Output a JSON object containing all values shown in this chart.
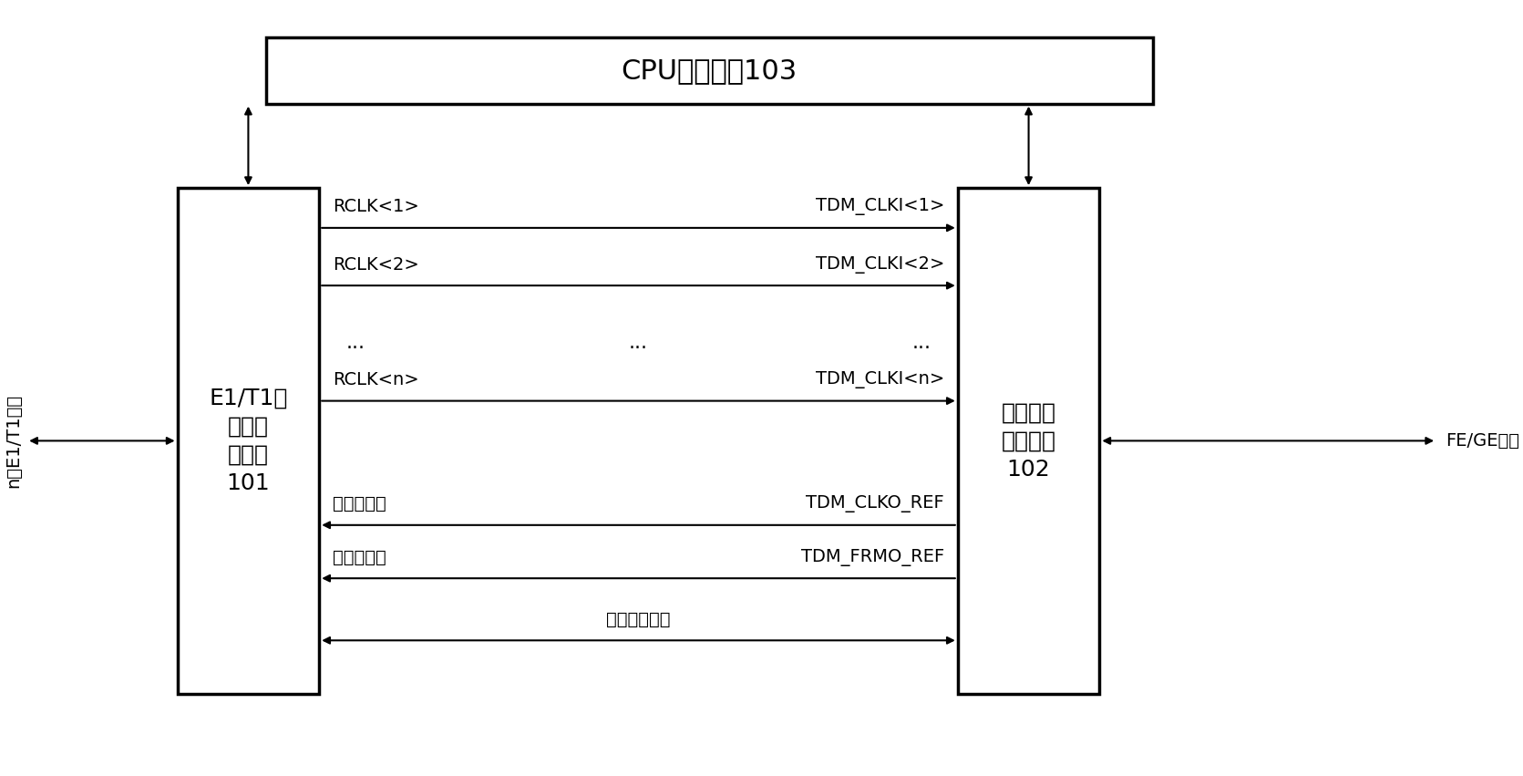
{
  "title": "CPU控制设备103",
  "box_left_label_line1": "E1/T1线",
  "box_left_label_line2": "接口及",
  "box_left_label_line3": "成帧器",
  "box_left_label_line4": "101",
  "box_right_label_line1": "电路仿真",
  "box_right_label_line2": "功能设备",
  "box_right_label_line3": "102",
  "left_interface": "n路E1/T1接口",
  "right_interface": "FE/GE接口",
  "signals_right": [
    "RCLK<1>",
    "RCLK<2>",
    "...",
    "RCLK<n>"
  ],
  "signals_left": [
    "TDM_CLKI<1>",
    "TDM_CLKI<2>",
    "...",
    "TDM_CLKI<n>"
  ],
  "signal_bit_sync": "位同步时钟",
  "signal_bit_sync_right": "TDM_CLKO_REF",
  "signal_frame_sync": "帧同步时钟",
  "signal_frame_sync_right": "TDM_FRMO_REF",
  "signal_data": "数据收发接口",
  "bg_color": "#ffffff",
  "box_color": "#ffffff",
  "box_edge_color": "#000000",
  "text_color": "#000000",
  "line_color": "#000000",
  "figsize": [
    16.71,
    8.51
  ],
  "dpi": 100
}
